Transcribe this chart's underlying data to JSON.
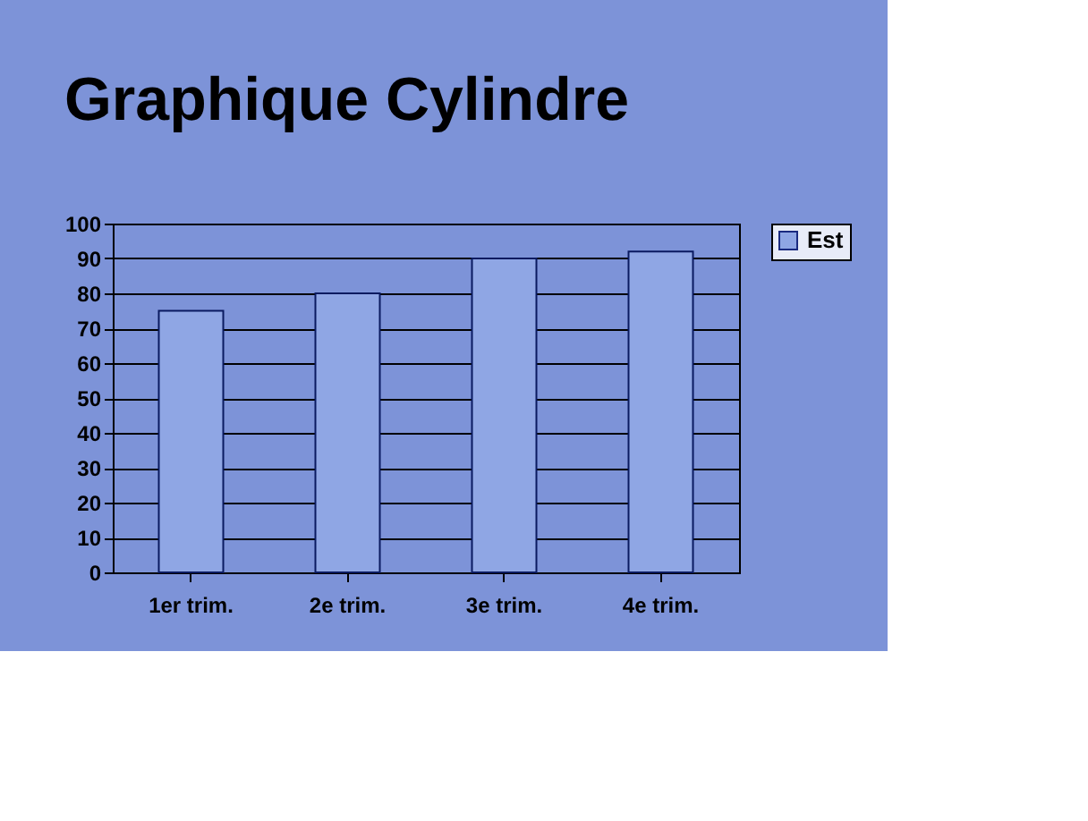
{
  "chart_data": {
    "type": "bar",
    "title": "Graphique Cylindre",
    "categories": [
      "1er  trim.",
      "2e  trim.",
      "3e  trim.",
      "4e  trim."
    ],
    "series": [
      {
        "name": "Est",
        "color": "#8fa6e4",
        "values": [
          75,
          80,
          90,
          92
        ]
      }
    ],
    "ylim": [
      0,
      100
    ],
    "yticks": [
      0,
      10,
      20,
      30,
      40,
      50,
      60,
      70,
      80,
      90,
      100
    ],
    "grid": "y",
    "legend": "right"
  }
}
